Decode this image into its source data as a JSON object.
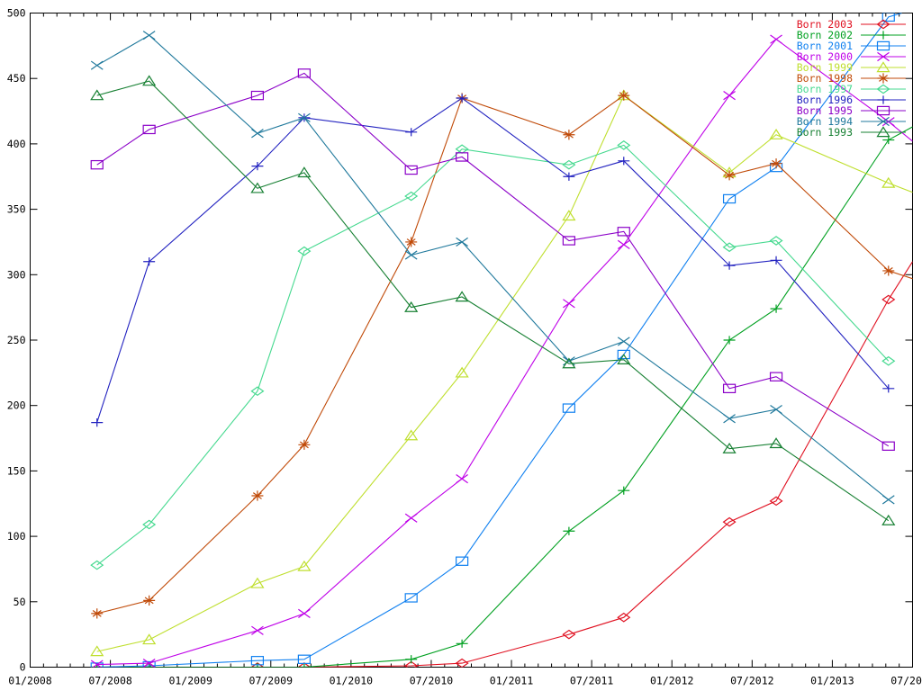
{
  "page": {
    "background": "#ffffff",
    "frame_color": "#000000"
  },
  "axes": {
    "x": {
      "range_months": [
        0,
        66
      ],
      "major_step_months": 6,
      "minor_step_months": 1,
      "tick_labels": [
        "01/2008",
        "07/2008",
        "01/2009",
        "07/2009",
        "01/2010",
        "07/2010",
        "01/2011",
        "07/2011",
        "01/2012",
        "07/2012",
        "01/2013",
        "07/2013"
      ]
    },
    "y": {
      "range": [
        0,
        500
      ],
      "major_step": 50,
      "tick_labels": [
        "0",
        "50",
        "100",
        "150",
        "200",
        "250",
        "300",
        "350",
        "400",
        "450",
        "500"
      ]
    }
  },
  "legend": {
    "position": "top-right-inside"
  },
  "chart_data": {
    "type": "line",
    "title": "",
    "xlabel": "",
    "ylabel": "",
    "grid": false,
    "x_unit": "months since 2008-01 (axis labels formatted MM/YYYY)",
    "ylim": [
      0,
      500
    ],
    "xlim_months": [
      0,
      66
    ],
    "legend_order_top_to_bottom": [
      "Born 2003",
      "Born 2002",
      "Born 2001",
      "Born 2000",
      "Born 1999",
      "Born 1998",
      "Born 1997",
      "Born 1996",
      "Born 1995",
      "Born 1994",
      "Born 1993"
    ],
    "series": [
      {
        "name": "Born 2003",
        "color": "#e01020",
        "marker": "diamond",
        "points": [
          [
            8.9,
            0
          ],
          [
            17,
            0
          ],
          [
            20.5,
            0
          ],
          [
            28.5,
            1
          ],
          [
            32.3,
            3
          ],
          [
            40.3,
            25
          ],
          [
            44.4,
            38
          ],
          [
            52.3,
            111
          ],
          [
            55.8,
            127
          ],
          [
            64.2,
            281
          ]
        ],
        "tail": [
          66,
          310
        ]
      },
      {
        "name": "Born 2002",
        "color": "#00a020",
        "marker": "plus",
        "points": [
          [
            5,
            0
          ],
          [
            8.9,
            0
          ],
          [
            17,
            0
          ],
          [
            20.5,
            0
          ],
          [
            28.5,
            6
          ],
          [
            32.3,
            18
          ],
          [
            40.3,
            104
          ],
          [
            44.4,
            135
          ],
          [
            52.3,
            250
          ],
          [
            55.8,
            274
          ],
          [
            64.2,
            403
          ]
        ],
        "tail": [
          66,
          413
        ]
      },
      {
        "name": "Born 2001",
        "color": "#1080f0",
        "marker": "square",
        "points": [
          [
            5,
            0
          ],
          [
            8.9,
            1
          ],
          [
            17,
            5
          ],
          [
            20.5,
            6
          ],
          [
            28.5,
            53
          ],
          [
            32.3,
            81
          ],
          [
            40.3,
            198
          ],
          [
            44.4,
            239
          ],
          [
            52.3,
            358
          ],
          [
            55.8,
            382
          ],
          [
            64.2,
            497
          ]
        ],
        "tail": [
          65.2,
          500
        ]
      },
      {
        "name": "Born 2000",
        "color": "#bf00e8",
        "marker": "x",
        "points": [
          [
            5,
            2
          ],
          [
            8.9,
            3
          ],
          [
            17,
            28
          ],
          [
            20.5,
            41
          ],
          [
            28.5,
            114
          ],
          [
            32.3,
            144
          ],
          [
            40.3,
            278
          ],
          [
            44.4,
            323
          ],
          [
            52.3,
            437
          ],
          [
            55.8,
            480
          ],
          [
            64.2,
            417
          ]
        ],
        "tail": [
          66,
          402
        ]
      },
      {
        "name": "Born 1999",
        "color": "#bfdf2e",
        "marker": "triangle",
        "points": [
          [
            5,
            12
          ],
          [
            8.9,
            21
          ],
          [
            17,
            64
          ],
          [
            20.5,
            77
          ],
          [
            28.5,
            177
          ],
          [
            32.3,
            225
          ],
          [
            40.3,
            345
          ],
          [
            44.4,
            437
          ],
          [
            52.3,
            378
          ],
          [
            55.8,
            407
          ],
          [
            64.2,
            370
          ]
        ],
        "tail": [
          66,
          363
        ]
      },
      {
        "name": "Born 1998",
        "color": "#c04a08",
        "marker": "star",
        "points": [
          [
            5,
            41
          ],
          [
            8.9,
            51
          ],
          [
            17,
            131
          ],
          [
            20.5,
            170
          ],
          [
            28.5,
            325
          ],
          [
            32.3,
            435
          ],
          [
            40.3,
            407
          ],
          [
            44.4,
            437
          ],
          [
            52.3,
            376
          ],
          [
            55.8,
            385
          ],
          [
            64.2,
            303
          ]
        ],
        "tail": [
          66,
          297
        ]
      },
      {
        "name": "Born 1997",
        "color": "#45d98f",
        "marker": "diamond",
        "points": [
          [
            5,
            78
          ],
          [
            8.9,
            109
          ],
          [
            17,
            211
          ],
          [
            20.5,
            318
          ],
          [
            28.5,
            360
          ],
          [
            32.3,
            396
          ],
          [
            40.3,
            384
          ],
          [
            44.4,
            399
          ],
          [
            52.3,
            321
          ],
          [
            55.8,
            326
          ],
          [
            64.2,
            234
          ]
        ],
        "tail": null
      },
      {
        "name": "Born 1996",
        "color": "#2222c0",
        "marker": "plus",
        "points": [
          [
            5,
            187
          ],
          [
            8.9,
            310
          ],
          [
            17,
            383
          ],
          [
            20.5,
            420
          ],
          [
            28.5,
            409
          ],
          [
            32.3,
            435
          ],
          [
            40.3,
            375
          ],
          [
            44.4,
            387
          ],
          [
            52.3,
            307
          ],
          [
            55.8,
            311
          ],
          [
            64.2,
            213
          ]
        ],
        "tail": null
      },
      {
        "name": "Born 1995",
        "color": "#8b00c8",
        "marker": "square",
        "points": [
          [
            5,
            384
          ],
          [
            8.9,
            411
          ],
          [
            17,
            437
          ],
          [
            20.5,
            454
          ],
          [
            28.5,
            380
          ],
          [
            32.3,
            390
          ],
          [
            40.3,
            326
          ],
          [
            44.4,
            333
          ],
          [
            52.3,
            213
          ],
          [
            55.8,
            222
          ],
          [
            64.2,
            169
          ]
        ],
        "tail": null
      },
      {
        "name": "Born 1994",
        "color": "#20799c",
        "marker": "x",
        "points": [
          [
            5,
            460
          ],
          [
            8.9,
            483
          ],
          [
            17,
            408
          ],
          [
            20.5,
            420
          ],
          [
            28.5,
            315
          ],
          [
            32.3,
            325
          ],
          [
            40.3,
            234
          ],
          [
            44.4,
            249
          ],
          [
            52.3,
            190
          ],
          [
            55.8,
            197
          ],
          [
            64.2,
            128
          ]
        ],
        "tail": null
      },
      {
        "name": "Born 1993",
        "color": "#178033",
        "marker": "triangle",
        "points": [
          [
            5,
            437
          ],
          [
            8.9,
            448
          ],
          [
            17,
            366
          ],
          [
            20.5,
            378
          ],
          [
            28.5,
            275
          ],
          [
            32.3,
            283
          ],
          [
            40.3,
            232
          ],
          [
            44.4,
            235
          ],
          [
            52.3,
            167
          ],
          [
            55.8,
            171
          ],
          [
            64.2,
            112
          ]
        ],
        "tail": null
      }
    ]
  }
}
